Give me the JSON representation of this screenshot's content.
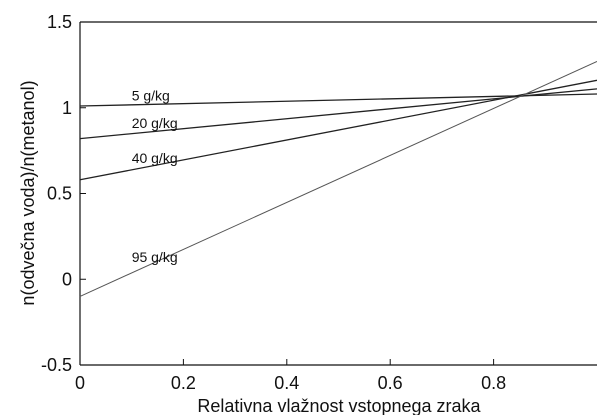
{
  "chart_data": {
    "type": "line",
    "xlabel": "Relativna vlažnost vstopnega zraka",
    "ylabel": "n(odvečna voda)/n(metanol)",
    "xlim": [
      0,
      1
    ],
    "ylim": [
      -0.5,
      1.5
    ],
    "xticks": [
      0,
      0.2,
      0.4,
      0.6,
      0.8
    ],
    "xtick_labels": [
      "0",
      "0.2",
      "0.4",
      "0.6",
      "0.8"
    ],
    "yticks": [
      -0.5,
      0,
      0.5,
      1,
      1.5
    ],
    "ytick_labels": [
      "-0.5",
      "0",
      "0.5",
      "1",
      "1.5"
    ],
    "grid": false,
    "legend": "none",
    "series": [
      {
        "name": "5 g/kg",
        "x": [
          0,
          1
        ],
        "y": [
          1.01,
          1.08
        ]
      },
      {
        "name": "20 g/kg",
        "x": [
          0,
          1
        ],
        "y": [
          0.82,
          1.11
        ]
      },
      {
        "name": "40 g/kg",
        "x": [
          0,
          1
        ],
        "y": [
          0.58,
          1.16
        ]
      },
      {
        "name": "95 g/kg",
        "x": [
          0,
          1
        ],
        "y": [
          -0.1,
          1.27
        ]
      }
    ],
    "series_colors": [
      "#222222",
      "#222222",
      "#222222",
      "#555555"
    ]
  }
}
